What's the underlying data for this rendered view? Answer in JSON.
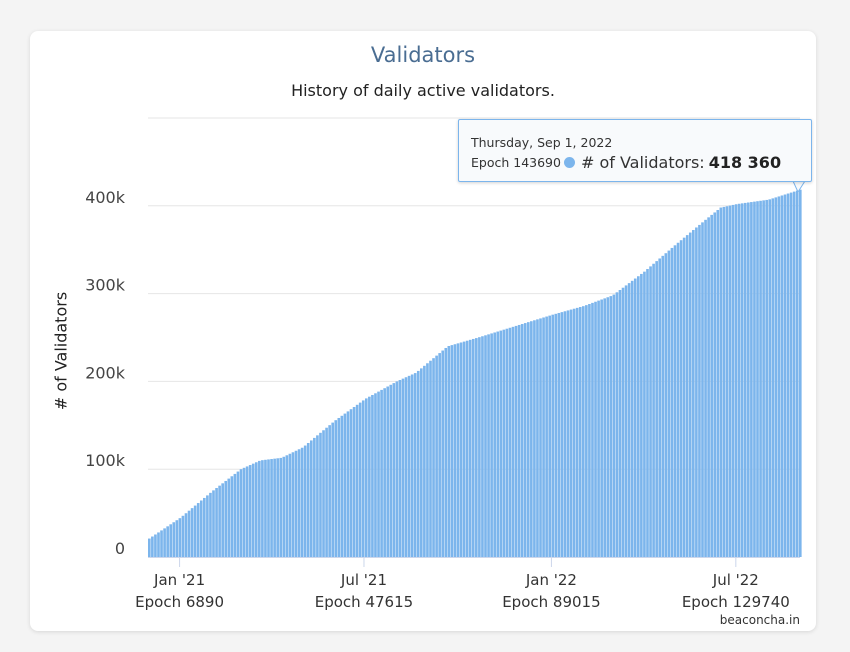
{
  "chart_data": {
    "type": "bar",
    "title": "Validators",
    "subtitle": "History of daily active validators.",
    "ylabel": "# of Validators",
    "xlabel": "",
    "ylim": [
      0,
      500000
    ],
    "y_ticks": [
      0,
      100000,
      200000,
      300000,
      400000
    ],
    "y_tick_labels": [
      "0",
      "100k",
      "200k",
      "300k",
      "400k"
    ],
    "x_ticks": [
      {
        "date": "2021-01-01",
        "label": "Jan '21",
        "epoch_label": "Epoch 6890"
      },
      {
        "date": "2021-07-01",
        "label": "Jul '21",
        "epoch_label": "Epoch 47615"
      },
      {
        "date": "2022-01-01",
        "label": "Jan '22",
        "epoch_label": "Epoch 89015"
      },
      {
        "date": "2022-07-01",
        "label": "Jul '22",
        "epoch_label": "Epoch 129740"
      }
    ],
    "x_range": [
      "2020-12-01",
      "2022-09-02"
    ],
    "series": [
      {
        "name": "# of Validators",
        "color": "#7cb5ec",
        "points": [
          [
            "2020-12-01",
            21000
          ],
          [
            "2021-01-01",
            45000
          ],
          [
            "2021-02-01",
            75000
          ],
          [
            "2021-03-01",
            100000
          ],
          [
            "2021-03-20",
            110000
          ],
          [
            "2021-04-10",
            113000
          ],
          [
            "2021-05-01",
            125000
          ],
          [
            "2021-06-01",
            155000
          ],
          [
            "2021-07-01",
            180000
          ],
          [
            "2021-08-01",
            200000
          ],
          [
            "2021-08-20",
            210000
          ],
          [
            "2021-09-20",
            240000
          ],
          [
            "2021-10-20",
            250000
          ],
          [
            "2021-12-01",
            265000
          ],
          [
            "2022-01-01",
            276000
          ],
          [
            "2022-02-01",
            286000
          ],
          [
            "2022-03-01",
            298000
          ],
          [
            "2022-04-01",
            325000
          ],
          [
            "2022-05-01",
            355000
          ],
          [
            "2022-06-01",
            385000
          ],
          [
            "2022-06-15",
            398000
          ],
          [
            "2022-07-01",
            402000
          ],
          [
            "2022-08-01",
            407000
          ],
          [
            "2022-09-01",
            418360
          ]
        ]
      }
    ],
    "grid": true,
    "legend": "none"
  },
  "tooltip": {
    "date": "Thursday, Sep 1, 2022",
    "epoch": "Epoch 143690",
    "series_label": "# of Validators:",
    "value": "418 360"
  },
  "credit": "beaconcha.in"
}
